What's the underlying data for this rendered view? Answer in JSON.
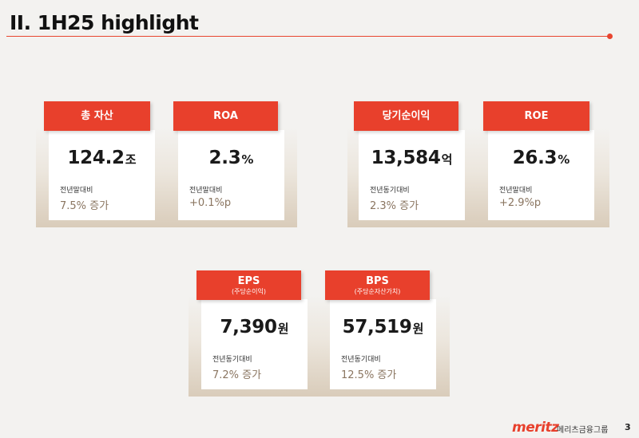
{
  "header": {
    "title": "II. 1H25 highlight"
  },
  "groups": [
    {
      "cards": [
        {
          "label": "총 자산",
          "value": "124.2",
          "unit": "조",
          "compare_label": "전년말대비",
          "compare_value": "7.5% 증가"
        },
        {
          "label": "ROA",
          "value": "2.3",
          "unit": "%",
          "compare_label": "전년말대비",
          "compare_value": "+0.1%p"
        }
      ]
    },
    {
      "cards": [
        {
          "label": "당기순이익",
          "value": "13,584",
          "unit": "억",
          "compare_label": "전년동기대비",
          "compare_value": "2.3% 증가"
        },
        {
          "label": "ROE",
          "value": "26.3",
          "unit": "%",
          "compare_label": "전년말대비",
          "compare_value": "+2.9%p"
        }
      ]
    },
    {
      "cards": [
        {
          "label": "EPS",
          "sublabel": "(주당순이익)",
          "value": "7,390",
          "unit": "원",
          "compare_label": "전년동기대비",
          "compare_value": "7.2% 증가"
        },
        {
          "label": "BPS",
          "sublabel": "(주당순자산가치)",
          "value": "57,519",
          "unit": "원",
          "compare_label": "전년동기대비",
          "compare_value": "12.5% 증가"
        }
      ]
    }
  ],
  "footer": {
    "logo": "meritz",
    "brand": "메리츠금융그룹",
    "page": "3"
  },
  "colors": {
    "accent": "#e8402c",
    "compare_text": "#8a7560",
    "background": "#f3f2f0"
  }
}
